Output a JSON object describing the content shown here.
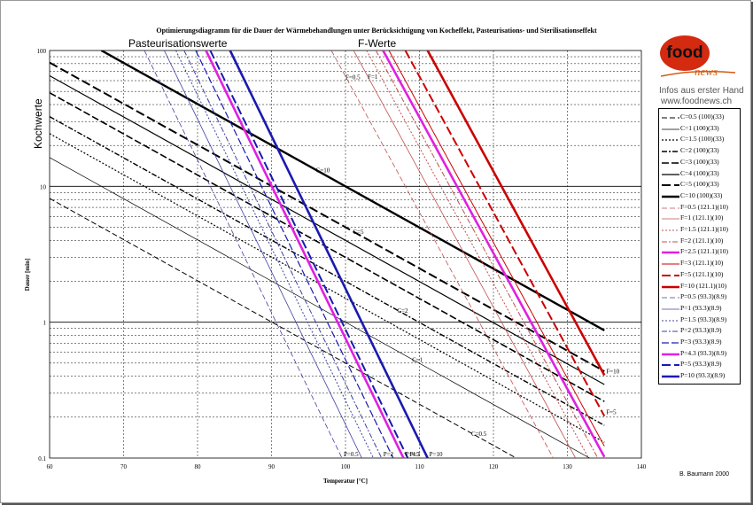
{
  "chart_data": {
    "type": "line",
    "title": "Optimierungsdiagramm für die Dauer der Wärmebehandlungen unter Berücksichtigung von Kocheffekt, Pasteurisations- und Sterilisationseffekt",
    "xlabel": "Temperatur [°C]",
    "ylabel": "Dauer [min]",
    "xlim": [
      60,
      140
    ],
    "ylim": [
      0.1,
      100
    ],
    "yscale": "log",
    "x_ticks": [
      "60",
      "70",
      "80",
      "90",
      "100",
      "110",
      "120",
      "130",
      "140"
    ],
    "y_ticks": [
      "0.1",
      "1",
      "10",
      "100"
    ],
    "grid": true,
    "legend_position": "right",
    "annotations": {
      "pasteurisation": "Pasteurisationswerte",
      "fwerte": "F-Werte",
      "kochwerte": "Kochwerte"
    },
    "series": [
      {
        "name": "C=0.5 (100)(33)",
        "group": "C",
        "ref": 100,
        "z": 33,
        "value": 0.5,
        "color": "#000000",
        "width": 1,
        "dash": "6,3",
        "label": ""
      },
      {
        "name": "C=1 (100)(33)",
        "group": "C",
        "ref": 100,
        "z": 33,
        "value": 1,
        "color": "#000000",
        "width": 0.7,
        "dash": "",
        "label": ""
      },
      {
        "name": "C=1.5 (100)(33)",
        "group": "C",
        "ref": 100,
        "z": 33,
        "value": 1.5,
        "color": "#000000",
        "width": 1.2,
        "dash": "2,2",
        "label": ""
      },
      {
        "name": "C=2 (100)(33)",
        "group": "C",
        "ref": 100,
        "z": 33,
        "value": 2,
        "color": "#000000",
        "width": 1.4,
        "dash": "6,2,2,2",
        "label": ""
      },
      {
        "name": "C=3 (100)(33)",
        "group": "C",
        "ref": 100,
        "z": 33,
        "value": 3,
        "color": "#000000",
        "width": 1.6,
        "dash": "8,3",
        "label": ""
      },
      {
        "name": "C=4 (100)(33)",
        "group": "C",
        "ref": 100,
        "z": 33,
        "value": 4,
        "color": "#000000",
        "width": 1.2,
        "dash": "",
        "label": ""
      },
      {
        "name": "C=5 (100)(33)",
        "group": "C",
        "ref": 100,
        "z": 33,
        "value": 5,
        "color": "#000000",
        "width": 2,
        "dash": "10,4",
        "label": ""
      },
      {
        "name": "C=10 (100)(33)",
        "group": "C",
        "ref": 100,
        "z": 33,
        "value": 10,
        "color": "#000000",
        "width": 2.4,
        "dash": "",
        "label": ""
      },
      {
        "name": "F=0.5 (121.1)(10)",
        "group": "F",
        "ref": 121.1,
        "z": 10,
        "value": 0.5,
        "color": "#c05050",
        "width": 0.8,
        "dash": "6,3",
        "label": ""
      },
      {
        "name": "F=1 (121.1)(10)",
        "group": "F",
        "ref": 121.1,
        "z": 10,
        "value": 1,
        "color": "#c05050",
        "width": 0.8,
        "dash": "",
        "label": ""
      },
      {
        "name": "F=1.5 (121.1)(10)",
        "group": "F",
        "ref": 121.1,
        "z": 10,
        "value": 1.5,
        "color": "#c05050",
        "width": 1,
        "dash": "2,2",
        "label": ""
      },
      {
        "name": "F=2 (121.1)(10)",
        "group": "F",
        "ref": 121.1,
        "z": 10,
        "value": 2,
        "color": "#c05050",
        "width": 1,
        "dash": "6,2,2,2",
        "label": ""
      },
      {
        "name": "F=2.5 (121.1)(10)",
        "group": "F",
        "ref": 121.1,
        "z": 10,
        "value": 2.5,
        "color": "#e020e0",
        "width": 2.6,
        "dash": "",
        "label": ""
      },
      {
        "name": "F=3 (121.1)(10)",
        "group": "F",
        "ref": 121.1,
        "z": 10,
        "value": 3,
        "color": "#cc0000",
        "width": 1,
        "dash": "",
        "label": ""
      },
      {
        "name": "F=5 (121.1)(10)",
        "group": "F",
        "ref": 121.1,
        "z": 10,
        "value": 5,
        "color": "#cc0000",
        "width": 2,
        "dash": "10,4",
        "label": "F=5"
      },
      {
        "name": "F=10 (121.1)(10)",
        "group": "F",
        "ref": 121.1,
        "z": 10,
        "value": 10,
        "color": "#cc0000",
        "width": 2.6,
        "dash": "",
        "label": "F=10"
      },
      {
        "name": "P=0.5 (93.3)(8.9)",
        "group": "P",
        "ref": 93.3,
        "z": 8.9,
        "value": 0.5,
        "color": "#4040a0",
        "width": 0.8,
        "dash": "6,3",
        "label": "P=0.5"
      },
      {
        "name": "P=1 (93.3)(8.9)",
        "group": "P",
        "ref": 93.3,
        "z": 8.9,
        "value": 1,
        "color": "#4040a0",
        "width": 0.8,
        "dash": "",
        "label": ""
      },
      {
        "name": "P=1.5 (93.3)(8.9)",
        "group": "P",
        "ref": 93.3,
        "z": 8.9,
        "value": 1.5,
        "color": "#4040a0",
        "width": 1,
        "dash": "2,2",
        "label": ""
      },
      {
        "name": "P=2 (93.3)(8.9)",
        "group": "P",
        "ref": 93.3,
        "z": 8.9,
        "value": 2,
        "color": "#4040a0",
        "width": 1,
        "dash": "6,2,2,2",
        "label": "P=2"
      },
      {
        "name": "P=3 (93.3)(8.9)",
        "group": "P",
        "ref": 93.3,
        "z": 8.9,
        "value": 3,
        "color": "#1a1ab0",
        "width": 1.2,
        "dash": "8,3",
        "label": ""
      },
      {
        "name": "P=4.3 (93.3)(8.9)",
        "group": "P",
        "ref": 93.3,
        "z": 8.9,
        "value": 4.3,
        "color": "#e020e0",
        "width": 2.6,
        "dash": "",
        "label": "P=4.3"
      },
      {
        "name": "P=5 (93.3)(8.9)",
        "group": "P",
        "ref": 93.3,
        "z": 8.9,
        "value": 5,
        "color": "#1a1ab0",
        "width": 2,
        "dash": "10,4",
        "label": "P=5"
      },
      {
        "name": "P=10 (93.3)(8.9)",
        "group": "P",
        "ref": 93.3,
        "z": 8.9,
        "value": 10,
        "color": "#1a1ab0",
        "width": 2.6,
        "dash": "",
        "label": "P=10"
      }
    ],
    "inline_labels": [
      "C=10",
      "C=5",
      "C=2",
      "C=1",
      "C=0.5",
      "F=1",
      "F=0.5"
    ]
  },
  "branding": {
    "logo_text": "food",
    "logo_sub": "news",
    "tagline": "Infos aus erster Hand",
    "url": "www.foodnews.ch"
  },
  "credit": "B. Baumann 2000"
}
